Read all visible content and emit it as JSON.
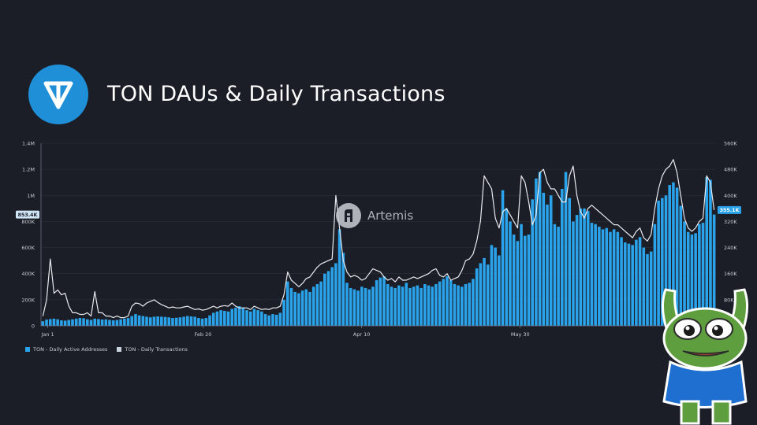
{
  "title": "TON DAUs & Daily Transactions",
  "watermark": "Artemis",
  "colors": {
    "background": "#1b1e27",
    "bars": "#2aa3eb",
    "line": "#e8eaee",
    "logo": "#1f8fd8",
    "grid": "#2b2f3a"
  },
  "icons": [
    "ton-logo-icon",
    "artemis-logo-icon",
    "pepe-sticker-icon"
  ],
  "chart_data": {
    "type": "bar+line",
    "x_ticks": [
      "Jan 1",
      "Feb 20",
      "Apr 10",
      "May 30"
    ],
    "y_left_ticks": [
      "0",
      "200K",
      "400K",
      "600K",
      "800K",
      "1M",
      "1.2M",
      "1.4M"
    ],
    "y_left_range": [
      0,
      1400000
    ],
    "y_right_ticks": [
      "0",
      "80K",
      "160K",
      "240K",
      "320K",
      "400K",
      "480K",
      "560K"
    ],
    "y_right_range": [
      0,
      560000
    ],
    "last_value_left": "853.4K",
    "last_value_right": "355.1K",
    "grid": true,
    "legend_position": "bottom-left",
    "series": [
      {
        "name": "TON - Daily Active Addresses",
        "axis": "left",
        "chart": "bar",
        "color": "#2aa3eb",
        "values": [
          35000,
          48000,
          52000,
          55000,
          50000,
          42000,
          40000,
          45000,
          50000,
          55000,
          60000,
          58000,
          50000,
          45000,
          55000,
          52000,
          48000,
          50000,
          45000,
          42000,
          45000,
          50000,
          55000,
          60000,
          75000,
          90000,
          80000,
          75000,
          70000,
          65000,
          70000,
          72000,
          70000,
          68000,
          65000,
          60000,
          62000,
          65000,
          70000,
          75000,
          72000,
          70000,
          60000,
          55000,
          60000,
          80000,
          100000,
          110000,
          120000,
          115000,
          110000,
          130000,
          140000,
          150000,
          140000,
          120000,
          110000,
          130000,
          120000,
          110000,
          90000,
          80000,
          90000,
          85000,
          100000,
          200000,
          340000,
          290000,
          260000,
          250000,
          270000,
          280000,
          260000,
          300000,
          320000,
          340000,
          400000,
          420000,
          450000,
          480000,
          740000,
          560000,
          330000,
          290000,
          280000,
          270000,
          300000,
          290000,
          280000,
          300000,
          350000,
          370000,
          380000,
          320000,
          300000,
          290000,
          310000,
          300000,
          330000,
          290000,
          300000,
          310000,
          290000,
          320000,
          310000,
          300000,
          320000,
          340000,
          360000,
          380000,
          350000,
          320000,
          310000,
          300000,
          320000,
          330000,
          360000,
          440000,
          480000,
          520000,
          470000,
          620000,
          600000,
          540000,
          1040000,
          900000,
          800000,
          700000,
          650000,
          780000,
          690000,
          700000,
          970000,
          1130000,
          1180000,
          1020000,
          930000,
          1000000,
          780000,
          760000,
          1050000,
          1180000,
          980000,
          800000,
          850000,
          900000,
          900000,
          880000,
          790000,
          780000,
          760000,
          740000,
          750000,
          720000,
          740000,
          720000,
          680000,
          640000,
          630000,
          620000,
          660000,
          680000,
          600000,
          550000,
          570000,
          780000,
          960000,
          980000,
          1000000,
          1080000,
          1100000,
          1060000,
          920000,
          800000,
          720000,
          700000,
          710000,
          780000,
          790000,
          1140000,
          1120000,
          853400
        ]
      },
      {
        "name": "TON - Daily Transactions",
        "axis": "right",
        "chart": "line",
        "color": "#e8eaee",
        "values": [
          30000,
          80000,
          205000,
          100000,
          110000,
          95000,
          100000,
          60000,
          40000,
          40000,
          35000,
          35000,
          40000,
          30000,
          105000,
          40000,
          40000,
          30000,
          30000,
          25000,
          30000,
          25000,
          25000,
          30000,
          60000,
          70000,
          68000,
          60000,
          70000,
          75000,
          80000,
          72000,
          65000,
          60000,
          55000,
          58000,
          55000,
          55000,
          58000,
          60000,
          55000,
          50000,
          52000,
          48000,
          50000,
          55000,
          60000,
          55000,
          60000,
          62000,
          60000,
          70000,
          60000,
          55000,
          55000,
          55000,
          50000,
          60000,
          55000,
          50000,
          52000,
          50000,
          55000,
          55000,
          60000,
          95000,
          165000,
          140000,
          130000,
          120000,
          130000,
          145000,
          150000,
          165000,
          180000,
          190000,
          195000,
          200000,
          205000,
          400000,
          300000,
          200000,
          165000,
          150000,
          155000,
          150000,
          140000,
          145000,
          160000,
          175000,
          170000,
          165000,
          150000,
          140000,
          145000,
          135000,
          150000,
          140000,
          140000,
          145000,
          150000,
          145000,
          150000,
          155000,
          160000,
          170000,
          175000,
          155000,
          150000,
          160000,
          140000,
          145000,
          150000,
          170000,
          200000,
          205000,
          220000,
          260000,
          320000,
          460000,
          440000,
          420000,
          330000,
          300000,
          350000,
          360000,
          340000,
          320000,
          300000,
          460000,
          440000,
          380000,
          310000,
          340000,
          470000,
          480000,
          440000,
          420000,
          420000,
          400000,
          380000,
          380000,
          460000,
          490000,
          400000,
          350000,
          330000,
          360000,
          370000,
          360000,
          350000,
          340000,
          330000,
          320000,
          310000,
          310000,
          300000,
          290000,
          280000,
          270000,
          290000,
          300000,
          270000,
          260000,
          280000,
          360000,
          420000,
          460000,
          480000,
          490000,
          510000,
          470000,
          400000,
          330000,
          300000,
          290000,
          300000,
          320000,
          330000,
          460000,
          440000,
          355100
        ]
      }
    ]
  }
}
